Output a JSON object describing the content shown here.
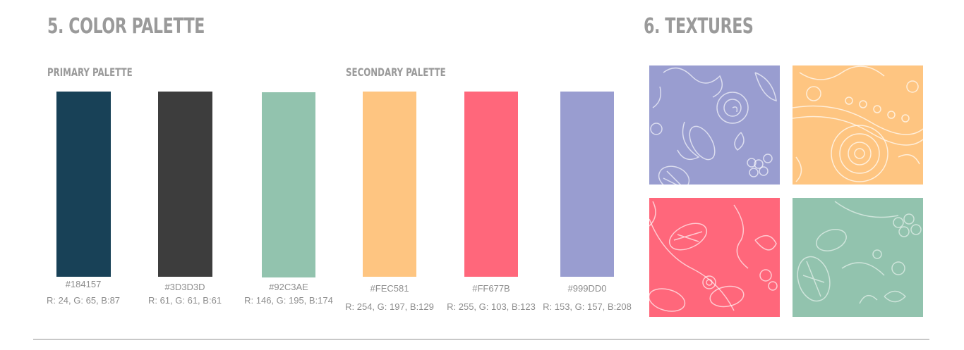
{
  "color_palette": {
    "title": "5. COLOR PALETTE",
    "primary": {
      "label": "PRIMARY PALETTE",
      "swatches": [
        {
          "hex": "#184157",
          "rgb": "R: 24, G: 65, B:87",
          "color": "#184157"
        },
        {
          "hex": "#3D3D3D",
          "rgb": "R: 61, G: 61, B:61",
          "color": "#3D3D3D"
        },
        {
          "hex": "#92C3AE",
          "rgb": "R: 146, G: 195, B:174",
          "color": "#92C3AE"
        }
      ]
    },
    "secondary": {
      "label": "SECONDARY PALETTE",
      "swatches": [
        {
          "hex": "#FEC581",
          "rgb": "R: 254, G: 197, B:129",
          "color": "#FEC581"
        },
        {
          "hex": "#FF677B",
          "rgb": "R: 255, G: 103, B:123",
          "color": "#FF677B"
        },
        {
          "hex": "#999DD0",
          "rgb": "R: 153, G: 157, B:208",
          "color": "#999DD0"
        }
      ]
    }
  },
  "textures": {
    "title": "6. TEXTURES",
    "tiles": [
      {
        "color": "#999DD0"
      },
      {
        "color": "#FEC581"
      },
      {
        "color": "#FF677B"
      },
      {
        "color": "#92C3AE"
      }
    ]
  }
}
